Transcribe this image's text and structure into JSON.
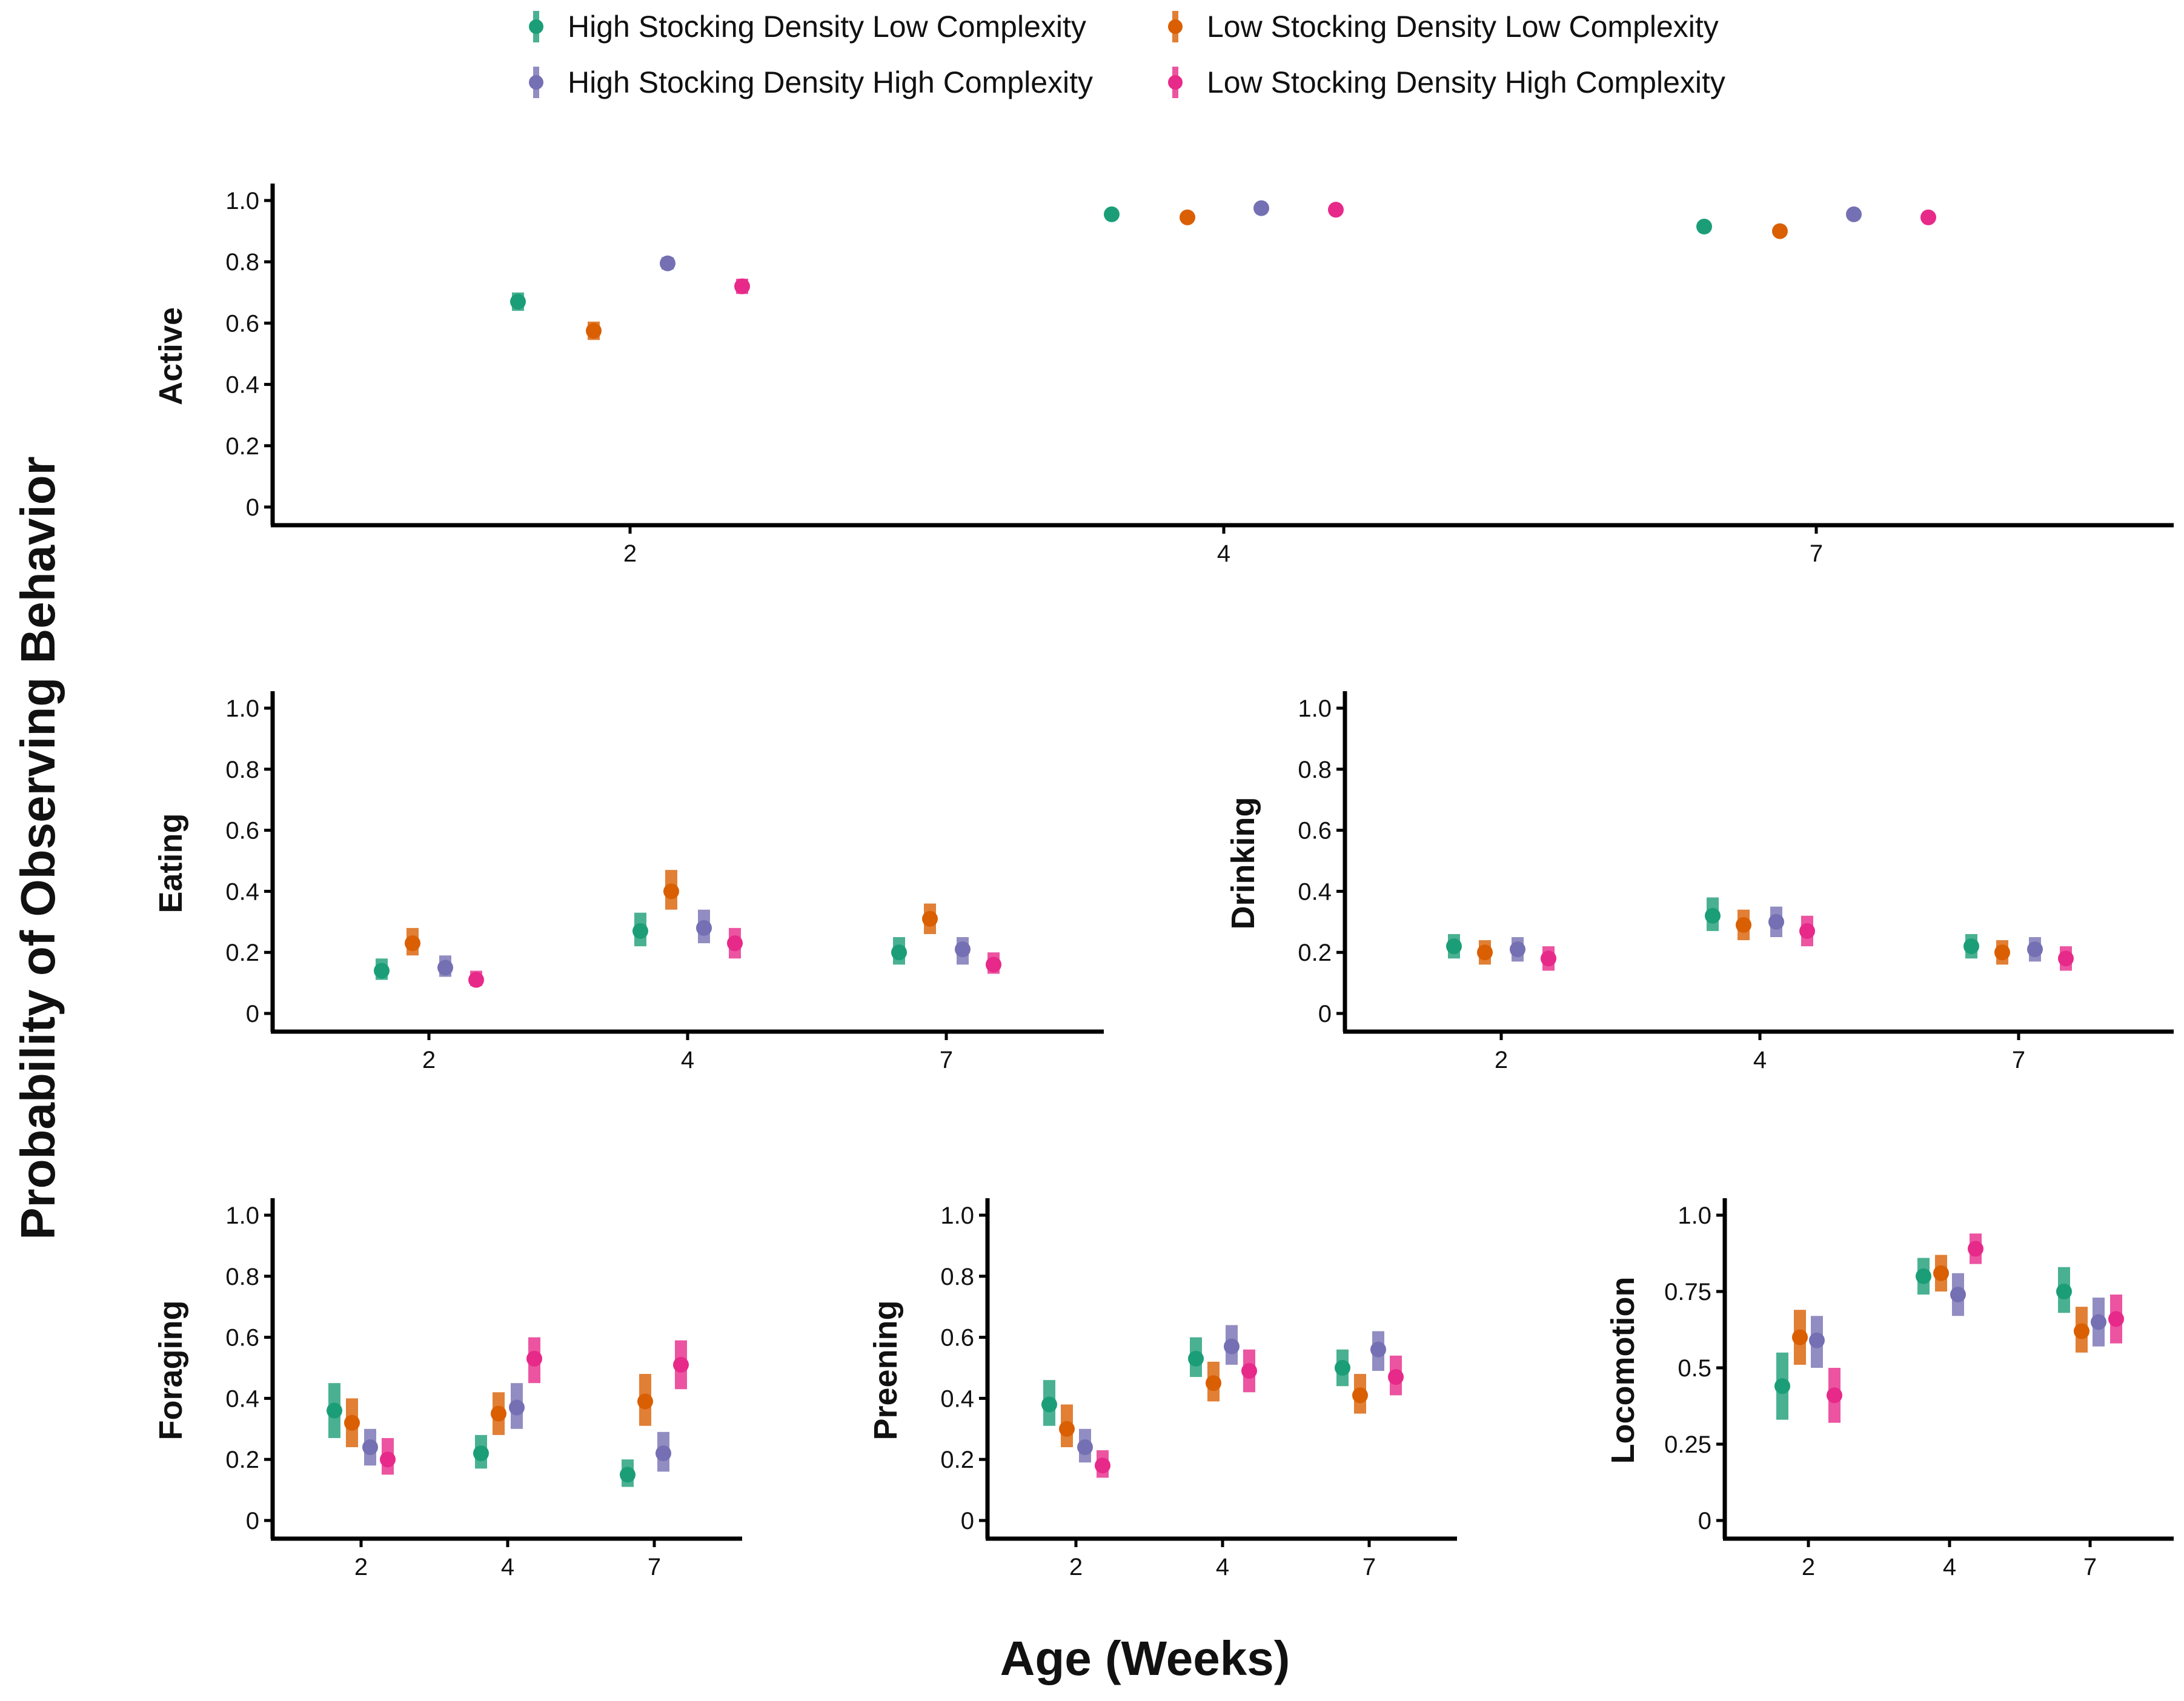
{
  "chart_data": {
    "type": "scatter",
    "y_axis_title": "Probability of Observing Behavior",
    "x_axis_title": "Age (Weeks)",
    "categories": [
      "2",
      "4",
      "7"
    ],
    "legend": [
      {
        "name": "High Stocking Density Low Complexity",
        "color": "#1B9E77"
      },
      {
        "name": "Low Stocking Density Low Complexity",
        "color": "#D95F02"
      },
      {
        "name": "High Stocking Density High Complexity",
        "color": "#7570B3"
      },
      {
        "name": "Low Stocking Density High Complexity",
        "color": "#E7298A"
      }
    ],
    "panels": [
      {
        "name": "active",
        "ylabel": "Active",
        "ylim": [
          0,
          1.0
        ],
        "yticks": [
          {
            "v": 0,
            "label": "0"
          },
          {
            "v": 0.2,
            "label": "0.2"
          },
          {
            "v": 0.4,
            "label": "0.4"
          },
          {
            "v": 0.6,
            "label": "0.6"
          },
          {
            "v": 0.8,
            "label": "0.8"
          },
          {
            "v": 1.0,
            "label": "1.0"
          }
        ],
        "series": [
          {
            "values": [
              0.67,
              0.955,
              0.915
            ],
            "lower": [
              0.64,
              0.945,
              0.905
            ],
            "upper": [
              0.7,
              0.965,
              0.925
            ]
          },
          {
            "values": [
              0.575,
              0.945,
              0.9
            ],
            "lower": [
              0.545,
              0.935,
              0.89
            ],
            "upper": [
              0.605,
              0.955,
              0.91
            ]
          },
          {
            "values": [
              0.795,
              0.975,
              0.955
            ],
            "lower": [
              0.775,
              0.965,
              0.945
            ],
            "upper": [
              0.815,
              0.985,
              0.965
            ]
          },
          {
            "values": [
              0.72,
              0.97,
              0.945
            ],
            "lower": [
              0.695,
              0.96,
              0.935
            ],
            "upper": [
              0.745,
              0.98,
              0.955
            ]
          }
        ]
      },
      {
        "name": "eating",
        "ylabel": "Eating",
        "ylim": [
          0,
          1.0
        ],
        "yticks": [
          {
            "v": 0,
            "label": "0"
          },
          {
            "v": 0.2,
            "label": "0.2"
          },
          {
            "v": 0.4,
            "label": "0.4"
          },
          {
            "v": 0.6,
            "label": "0.6"
          },
          {
            "v": 0.8,
            "label": "0.8"
          },
          {
            "v": 1.0,
            "label": "1.0"
          }
        ],
        "series": [
          {
            "values": [
              0.14,
              0.27,
              0.2
            ],
            "lower": [
              0.11,
              0.22,
              0.16
            ],
            "upper": [
              0.18,
              0.33,
              0.25
            ]
          },
          {
            "values": [
              0.23,
              0.4,
              0.31
            ],
            "lower": [
              0.19,
              0.34,
              0.26
            ],
            "upper": [
              0.28,
              0.47,
              0.36
            ]
          },
          {
            "values": [
              0.15,
              0.28,
              0.21
            ],
            "lower": [
              0.12,
              0.23,
              0.16
            ],
            "upper": [
              0.19,
              0.34,
              0.25
            ]
          },
          {
            "values": [
              0.11,
              0.23,
              0.16
            ],
            "lower": [
              0.09,
              0.18,
              0.13
            ],
            "upper": [
              0.14,
              0.28,
              0.2
            ]
          }
        ]
      },
      {
        "name": "drinking",
        "ylabel": "Drinking",
        "ylim": [
          0,
          1.0
        ],
        "yticks": [
          {
            "v": 0,
            "label": "0"
          },
          {
            "v": 0.2,
            "label": "0.2"
          },
          {
            "v": 0.4,
            "label": "0.4"
          },
          {
            "v": 0.6,
            "label": "0.6"
          },
          {
            "v": 0.8,
            "label": "0.8"
          },
          {
            "v": 1.0,
            "label": "1.0"
          }
        ],
        "series": [
          {
            "values": [
              0.22,
              0.32,
              0.22
            ],
            "lower": [
              0.18,
              0.27,
              0.18
            ],
            "upper": [
              0.26,
              0.38,
              0.26
            ]
          },
          {
            "values": [
              0.2,
              0.29,
              0.2
            ],
            "lower": [
              0.16,
              0.24,
              0.16
            ],
            "upper": [
              0.24,
              0.34,
              0.24
            ]
          },
          {
            "values": [
              0.21,
              0.3,
              0.21
            ],
            "lower": [
              0.17,
              0.25,
              0.17
            ],
            "upper": [
              0.25,
              0.35,
              0.25
            ]
          },
          {
            "values": [
              0.18,
              0.27,
              0.18
            ],
            "lower": [
              0.14,
              0.22,
              0.14
            ],
            "upper": [
              0.22,
              0.32,
              0.22
            ]
          }
        ]
      },
      {
        "name": "foraging",
        "ylabel": "Foraging",
        "ylim": [
          0,
          1.0
        ],
        "yticks": [
          {
            "v": 0,
            "label": "0"
          },
          {
            "v": 0.2,
            "label": "0.2"
          },
          {
            "v": 0.4,
            "label": "0.4"
          },
          {
            "v": 0.6,
            "label": "0.6"
          },
          {
            "v": 0.8,
            "label": "0.8"
          },
          {
            "v": 1.0,
            "label": "1.0"
          }
        ],
        "series": [
          {
            "values": [
              0.36,
              0.22,
              0.15
            ],
            "lower": [
              0.27,
              0.17,
              0.11
            ],
            "upper": [
              0.45,
              0.28,
              0.2
            ]
          },
          {
            "values": [
              0.32,
              0.35,
              0.39
            ],
            "lower": [
              0.24,
              0.28,
              0.31
            ],
            "upper": [
              0.4,
              0.42,
              0.48
            ]
          },
          {
            "values": [
              0.24,
              0.37,
              0.22
            ],
            "lower": [
              0.18,
              0.3,
              0.16
            ],
            "upper": [
              0.3,
              0.45,
              0.29
            ]
          },
          {
            "values": [
              0.2,
              0.53,
              0.51
            ],
            "lower": [
              0.15,
              0.45,
              0.43
            ],
            "upper": [
              0.27,
              0.6,
              0.59
            ]
          }
        ]
      },
      {
        "name": "preening",
        "ylabel": "Preening",
        "ylim": [
          0,
          1.0
        ],
        "yticks": [
          {
            "v": 0,
            "label": "0"
          },
          {
            "v": 0.2,
            "label": "0.2"
          },
          {
            "v": 0.4,
            "label": "0.4"
          },
          {
            "v": 0.6,
            "label": "0.6"
          },
          {
            "v": 0.8,
            "label": "0.8"
          },
          {
            "v": 1.0,
            "label": "1.0"
          }
        ],
        "series": [
          {
            "values": [
              0.38,
              0.53,
              0.5
            ],
            "lower": [
              0.31,
              0.47,
              0.44
            ],
            "upper": [
              0.46,
              0.6,
              0.56
            ]
          },
          {
            "values": [
              0.3,
              0.45,
              0.41
            ],
            "lower": [
              0.24,
              0.39,
              0.35
            ],
            "upper": [
              0.38,
              0.52,
              0.48
            ]
          },
          {
            "values": [
              0.24,
              0.57,
              0.56
            ],
            "lower": [
              0.19,
              0.51,
              0.49
            ],
            "upper": [
              0.3,
              0.64,
              0.62
            ]
          },
          {
            "values": [
              0.18,
              0.49,
              0.47
            ],
            "lower": [
              0.14,
              0.42,
              0.41
            ],
            "upper": [
              0.23,
              0.56,
              0.54
            ]
          }
        ]
      },
      {
        "name": "locomotion",
        "ylabel": "Locomotion",
        "ylim": [
          0,
          1.0
        ],
        "yticks": [
          {
            "v": 0,
            "label": "0"
          },
          {
            "v": 0.25,
            "label": "0.25"
          },
          {
            "v": 0.5,
            "label": "0.5"
          },
          {
            "v": 0.75,
            "label": "0.75"
          },
          {
            "v": 1.0,
            "label": "1.0"
          }
        ],
        "series": [
          {
            "values": [
              0.44,
              0.8,
              0.75
            ],
            "lower": [
              0.33,
              0.74,
              0.68
            ],
            "upper": [
              0.55,
              0.86,
              0.83
            ]
          },
          {
            "values": [
              0.6,
              0.81,
              0.62
            ],
            "lower": [
              0.51,
              0.75,
              0.55
            ],
            "upper": [
              0.69,
              0.87,
              0.7
            ]
          },
          {
            "values": [
              0.59,
              0.74,
              0.65
            ],
            "lower": [
              0.5,
              0.67,
              0.57
            ],
            "upper": [
              0.67,
              0.81,
              0.73
            ]
          },
          {
            "values": [
              0.41,
              0.89,
              0.66
            ],
            "lower": [
              0.32,
              0.84,
              0.58
            ],
            "upper": [
              0.5,
              0.94,
              0.74
            ]
          }
        ]
      }
    ]
  }
}
